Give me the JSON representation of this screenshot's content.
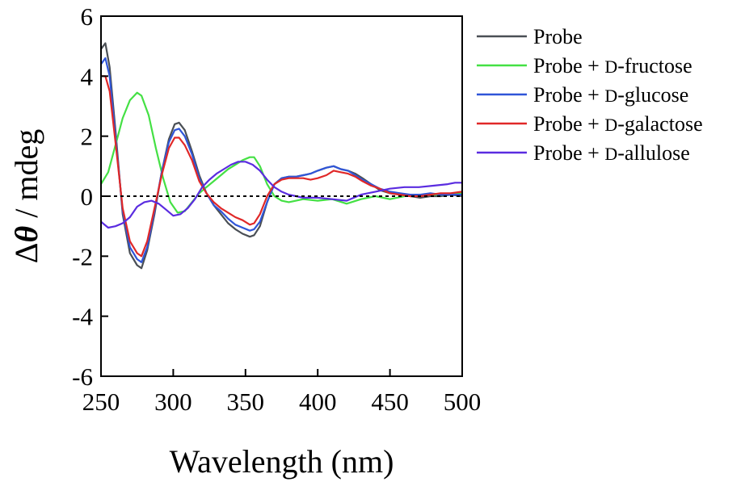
{
  "chart_data": {
    "type": "line",
    "title": "",
    "xlabel": "Wavelength (nm)",
    "ylabel": {
      "prefix": "Δ",
      "symbol": "θ",
      "suffix": " / mdeg"
    },
    "xlim": [
      250,
      500
    ],
    "ylim": [
      -6,
      6
    ],
    "xticks": [
      250,
      300,
      350,
      400,
      450,
      500
    ],
    "yticks": [
      -6,
      -4,
      -2,
      0,
      2,
      4,
      6
    ],
    "zero_line": true,
    "grid": false,
    "legend_position": "right",
    "series": [
      {
        "name": "Probe",
        "legend": {
          "pre": "Probe",
          "sc": "",
          "post": ""
        },
        "color": "#4a4f55",
        "x": [
          250,
          253,
          256,
          260,
          265,
          270,
          275,
          278,
          282,
          287,
          292,
          297,
          301,
          304,
          308,
          313,
          318,
          323,
          328,
          333,
          338,
          343,
          348,
          353,
          356,
          360,
          365,
          370,
          375,
          380,
          385,
          390,
          395,
          400,
          406,
          411,
          416,
          421,
          426,
          431,
          437,
          443,
          450,
          457,
          464,
          471,
          478,
          485,
          492,
          500
        ],
        "y": [
          4.9,
          5.1,
          4.3,
          2.2,
          -0.6,
          -1.9,
          -2.3,
          -2.4,
          -1.8,
          -0.6,
          0.8,
          1.9,
          2.4,
          2.45,
          2.2,
          1.5,
          0.7,
          0.1,
          -0.3,
          -0.6,
          -0.9,
          -1.1,
          -1.25,
          -1.35,
          -1.3,
          -1.0,
          -0.2,
          0.4,
          0.6,
          0.65,
          0.65,
          0.7,
          0.75,
          0.85,
          0.95,
          1.0,
          0.9,
          0.85,
          0.75,
          0.6,
          0.4,
          0.2,
          0.1,
          0.05,
          0.0,
          -0.05,
          0.0,
          0.0,
          0.05,
          0.0
        ]
      },
      {
        "name": "Probe + D-fructose",
        "legend": {
          "pre": "Probe + ",
          "sc": "D",
          "post": "-fructose"
        },
        "color": "#44e044",
        "x": [
          250,
          255,
          260,
          265,
          270,
          275,
          278,
          283,
          288,
          293,
          298,
          303,
          308,
          313,
          318,
          323,
          328,
          333,
          338,
          343,
          348,
          353,
          356,
          360,
          365,
          370,
          375,
          380,
          385,
          390,
          400,
          410,
          420,
          430,
          440,
          450,
          460,
          470,
          480,
          490,
          500
        ],
        "y": [
          0.4,
          0.8,
          1.7,
          2.6,
          3.2,
          3.45,
          3.35,
          2.7,
          1.6,
          0.6,
          -0.2,
          -0.55,
          -0.5,
          -0.2,
          0.1,
          0.3,
          0.5,
          0.7,
          0.9,
          1.05,
          1.2,
          1.3,
          1.3,
          1.0,
          0.4,
          0.0,
          -0.15,
          -0.2,
          -0.15,
          -0.1,
          -0.15,
          -0.1,
          -0.25,
          -0.1,
          0.0,
          -0.1,
          0.0,
          0.05,
          0.05,
          0.05,
          0.1
        ]
      },
      {
        "name": "Probe + D-glucose",
        "legend": {
          "pre": "Probe + ",
          "sc": "D",
          "post": "-glucose"
        },
        "color": "#2f55d8",
        "x": [
          250,
          253,
          256,
          260,
          265,
          270,
          275,
          278,
          282,
          287,
          292,
          297,
          301,
          304,
          308,
          313,
          318,
          323,
          328,
          333,
          338,
          343,
          348,
          353,
          356,
          360,
          365,
          370,
          375,
          380,
          385,
          390,
          395,
          400,
          406,
          411,
          416,
          421,
          426,
          431,
          437,
          443,
          450,
          457,
          464,
          471,
          478,
          485,
          492,
          500
        ],
        "y": [
          4.4,
          4.6,
          4.0,
          2.0,
          -0.5,
          -1.7,
          -2.1,
          -2.2,
          -1.7,
          -0.5,
          0.8,
          1.8,
          2.2,
          2.25,
          2.0,
          1.4,
          0.6,
          0.1,
          -0.3,
          -0.5,
          -0.75,
          -0.95,
          -1.05,
          -1.15,
          -1.1,
          -0.85,
          -0.2,
          0.4,
          0.6,
          0.65,
          0.65,
          0.7,
          0.75,
          0.85,
          0.95,
          1.0,
          0.9,
          0.85,
          0.7,
          0.55,
          0.4,
          0.25,
          0.15,
          0.1,
          0.05,
          0.05,
          0.1,
          0.05,
          0.05,
          0.05
        ]
      },
      {
        "name": "Probe + D-galactose",
        "legend": {
          "pre": "Probe + ",
          "sc": "D",
          "post": "-galactose"
        },
        "color": "#e02828",
        "x": [
          250,
          253,
          256,
          260,
          265,
          270,
          275,
          278,
          282,
          287,
          292,
          297,
          301,
          304,
          308,
          313,
          318,
          323,
          328,
          333,
          338,
          343,
          348,
          353,
          356,
          360,
          365,
          370,
          375,
          380,
          385,
          390,
          395,
          400,
          406,
          411,
          416,
          421,
          426,
          431,
          437,
          443,
          450,
          457,
          464,
          471,
          478,
          485,
          492,
          500
        ],
        "y": [
          4.0,
          4.0,
          3.5,
          1.8,
          -0.4,
          -1.5,
          -1.9,
          -2.0,
          -1.5,
          -0.4,
          0.7,
          1.6,
          1.95,
          1.95,
          1.7,
          1.2,
          0.5,
          0.1,
          -0.2,
          -0.4,
          -0.55,
          -0.7,
          -0.8,
          -0.95,
          -0.9,
          -0.6,
          0.0,
          0.4,
          0.55,
          0.6,
          0.6,
          0.6,
          0.55,
          0.6,
          0.7,
          0.85,
          0.8,
          0.75,
          0.65,
          0.5,
          0.35,
          0.25,
          0.1,
          0.05,
          0.0,
          0.0,
          0.05,
          0.1,
          0.1,
          0.15
        ]
      },
      {
        "name": "Probe + D-allulose",
        "legend": {
          "pre": "Probe + ",
          "sc": "D",
          "post": "-allulose"
        },
        "color": "#5a2ce0",
        "x": [
          250,
          255,
          260,
          265,
          270,
          275,
          280,
          285,
          290,
          295,
          300,
          305,
          310,
          315,
          320,
          325,
          330,
          335,
          340,
          345,
          350,
          355,
          360,
          365,
          370,
          375,
          380,
          385,
          390,
          400,
          410,
          420,
          430,
          440,
          450,
          460,
          470,
          480,
          490,
          495,
          500
        ],
        "y": [
          -0.85,
          -1.05,
          -1.0,
          -0.9,
          -0.7,
          -0.35,
          -0.2,
          -0.15,
          -0.25,
          -0.45,
          -0.65,
          -0.6,
          -0.4,
          -0.1,
          0.3,
          0.55,
          0.75,
          0.9,
          1.05,
          1.15,
          1.15,
          1.05,
          0.85,
          0.55,
          0.3,
          0.15,
          0.05,
          0.0,
          -0.05,
          -0.05,
          -0.1,
          -0.15,
          0.05,
          0.15,
          0.25,
          0.3,
          0.3,
          0.35,
          0.4,
          0.45,
          0.45
        ]
      }
    ]
  }
}
